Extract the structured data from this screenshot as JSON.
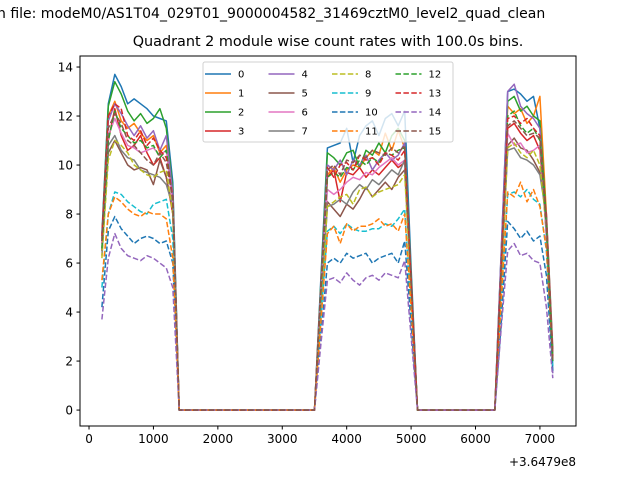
{
  "chart_data": {
    "type": "line",
    "suptitle": "n file: modeM0/AS1T04_029T01_9000004582_31469cztM0_level2_quad_clean",
    "title": "Quadrant 2 module wise count rates with 100.0s bins.",
    "xlabel": "",
    "ylabel": "",
    "x_offset_label": "+3.6479e8",
    "xlim": [
      -140,
      7560
    ],
    "ylim": [
      -0.65,
      14.45
    ],
    "xticks": [
      0,
      1000,
      2000,
      3000,
      4000,
      5000,
      6000,
      7000
    ],
    "yticks": [
      0,
      2,
      4,
      6,
      8,
      10,
      12,
      14
    ],
    "legend_position": "upper-center",
    "legend_columns": 4,
    "x": [
      200,
      300,
      400,
      500,
      600,
      700,
      800,
      900,
      1000,
      1100,
      1200,
      1300,
      1400,
      3500,
      3600,
      3700,
      3800,
      3900,
      4000,
      4100,
      4200,
      4300,
      4400,
      4500,
      4600,
      4700,
      4800,
      4900,
      5000,
      5100,
      6300,
      6400,
      6500,
      6600,
      6700,
      6800,
      6900,
      7000,
      7100,
      7200
    ],
    "series": [
      {
        "name": "0",
        "color": "#1f77b4",
        "dash": false,
        "values": [
          7.2,
          12.5,
          13.7,
          13.2,
          12.5,
          12.7,
          12.5,
          12.3,
          12.0,
          11.9,
          11.8,
          9.3,
          0,
          0,
          5.4,
          10.7,
          10.8,
          10.9,
          11.5,
          10.1,
          11.2,
          11.6,
          11.8,
          11.2,
          11.9,
          12.1,
          11.6,
          12.2,
          5.8,
          0,
          0,
          6.5,
          13.0,
          13.1,
          12.9,
          12.6,
          12.8,
          11.5,
          7.5,
          2.0
        ]
      },
      {
        "name": "1",
        "color": "#ff7f0e",
        "dash": false,
        "values": [
          6.5,
          12.0,
          12.6,
          11.8,
          11.5,
          11.7,
          11.3,
          11.0,
          11.2,
          10.5,
          10.8,
          8.5,
          0,
          0,
          5.0,
          9.6,
          9.9,
          9.3,
          9.8,
          10.0,
          9.9,
          10.3,
          10.6,
          10.4,
          11.3,
          10.6,
          11.4,
          10.7,
          5.2,
          0,
          0,
          6.2,
          12.4,
          12.1,
          12.3,
          11.7,
          12.0,
          12.8,
          8.0,
          2.2
        ]
      },
      {
        "name": "2",
        "color": "#2ca02c",
        "dash": false,
        "values": [
          7.0,
          12.4,
          13.4,
          12.9,
          12.2,
          11.8,
          12.1,
          11.7,
          11.9,
          12.3,
          11.5,
          9.0,
          0,
          0,
          5.2,
          10.5,
          10.3,
          10.0,
          10.5,
          10.6,
          9.9,
          10.6,
          10.4,
          10.9,
          10.5,
          11.2,
          11.5,
          11.0,
          5.5,
          0,
          0,
          6.4,
          12.6,
          12.8,
          12.2,
          12.4,
          12.0,
          11.8,
          7.8,
          2.0
        ]
      },
      {
        "name": "3",
        "color": "#d62728",
        "dash": false,
        "values": [
          6.8,
          11.0,
          12.3,
          11.2,
          10.6,
          10.8,
          11.2,
          10.5,
          10.0,
          10.3,
          9.5,
          8.0,
          0,
          0,
          4.8,
          9.5,
          9.8,
          8.5,
          9.7,
          9.6,
          9.9,
          9.5,
          9.8,
          9.6,
          9.9,
          10.2,
          9.9,
          10.1,
          5.0,
          0,
          0,
          6.0,
          11.5,
          11.7,
          11.3,
          11.0,
          11.2,
          10.6,
          7.2,
          2.0
        ]
      },
      {
        "name": "4",
        "color": "#9467bd",
        "dash": false,
        "values": [
          6.9,
          11.8,
          12.5,
          12.1,
          11.6,
          11.2,
          11.6,
          11.1,
          11.4,
          10.6,
          11.2,
          8.8,
          0,
          0,
          5.0,
          10.0,
          9.8,
          10.2,
          9.6,
          10.2,
          10.0,
          10.4,
          9.8,
          10.2,
          10.5,
          10.2,
          10.4,
          10.9,
          5.3,
          0,
          0,
          6.6,
          13.0,
          13.3,
          12.4,
          12.1,
          11.9,
          11.5,
          7.0,
          1.5
        ]
      },
      {
        "name": "5",
        "color": "#8c564b",
        "dash": false,
        "values": [
          6.5,
          10.5,
          11.0,
          10.5,
          10.0,
          9.8,
          9.9,
          9.8,
          9.2,
          10.2,
          9.5,
          8.2,
          0,
          0,
          4.4,
          8.5,
          8.2,
          7.9,
          8.4,
          8.2,
          8.6,
          9.1,
          8.7,
          9.0,
          9.3,
          9.0,
          9.5,
          9.8,
          5.0,
          0,
          0,
          5.4,
          10.8,
          11.1,
          10.7,
          10.6,
          10.2,
          9.7,
          8.0,
          2.5
        ]
      },
      {
        "name": "6",
        "color": "#e377c2",
        "dash": false,
        "values": [
          6.6,
          11.2,
          11.9,
          11.3,
          10.8,
          10.7,
          10.5,
          10.6,
          10.7,
          10.4,
          10.6,
          8.3,
          0,
          0,
          4.6,
          9.0,
          8.8,
          9.0,
          9.3,
          9.5,
          9.4,
          9.7,
          9.6,
          9.9,
          10.1,
          10.3,
          10.0,
          10.2,
          5.1,
          0,
          0,
          5.8,
          11.3,
          10.8,
          10.9,
          10.5,
          10.6,
          10.8,
          7.3,
          2.0
        ]
      },
      {
        "name": "7",
        "color": "#7f7f7f",
        "dash": false,
        "values": [
          6.3,
          10.8,
          11.2,
          10.6,
          10.3,
          10.2,
          9.8,
          9.7,
          9.6,
          9.5,
          9.2,
          8.3,
          0,
          0,
          4.3,
          8.3,
          8.4,
          8.6,
          8.4,
          8.9,
          9.2,
          9.0,
          9.4,
          9.2,
          9.5,
          9.8,
          9.6,
          10.2,
          5.0,
          0,
          0,
          5.4,
          10.6,
          10.7,
          10.3,
          10.2,
          10.0,
          9.6,
          7.9,
          2.3
        ]
      },
      {
        "name": "8",
        "color": "#bcbd22",
        "dash": true,
        "values": [
          6.2,
          10.2,
          11.0,
          10.8,
          10.5,
          10.0,
          9.8,
          9.6,
          9.5,
          9.7,
          9.8,
          8.0,
          0,
          0,
          4.2,
          8.3,
          8.5,
          8.7,
          8.8,
          8.4,
          9.0,
          9.1,
          8.7,
          8.9,
          9.0,
          9.1,
          9.2,
          9.6,
          4.9,
          0,
          0,
          5.4,
          10.7,
          10.9,
          10.5,
          10.3,
          10.6,
          10.0,
          7.5,
          2.0
        ]
      },
      {
        "name": "9",
        "color": "#17becf",
        "dash": true,
        "values": [
          5.0,
          8.0,
          8.9,
          8.8,
          8.5,
          8.3,
          8.1,
          8.0,
          8.4,
          8.5,
          8.6,
          7.0,
          0,
          0,
          3.8,
          7.3,
          7.5,
          7.2,
          7.6,
          7.4,
          7.3,
          7.3,
          7.4,
          7.4,
          7.6,
          7.5,
          7.8,
          8.2,
          4.0,
          0,
          0,
          4.4,
          8.8,
          8.9,
          8.7,
          9.0,
          8.6,
          8.4,
          6.5,
          1.8
        ]
      },
      {
        "name": "10",
        "color": "#1f77b4",
        "dash": true,
        "values": [
          4.2,
          7.3,
          7.9,
          7.4,
          7.1,
          6.8,
          7.0,
          7.1,
          7.0,
          6.8,
          6.9,
          6.0,
          0,
          0,
          3.0,
          6.0,
          6.2,
          6.0,
          6.4,
          6.2,
          6.3,
          6.4,
          6.0,
          6.2,
          6.3,
          6.4,
          6.0,
          6.9,
          3.5,
          0,
          0,
          3.6,
          7.7,
          7.4,
          7.0,
          7.3,
          6.9,
          7.1,
          5.5,
          1.6
        ]
      },
      {
        "name": "11",
        "color": "#ff7f0e",
        "dash": true,
        "values": [
          5.3,
          8.0,
          8.7,
          8.5,
          8.2,
          8.0,
          7.9,
          8.1,
          8.0,
          8.0,
          7.8,
          6.2,
          0,
          0,
          3.6,
          7.2,
          7.5,
          6.8,
          7.6,
          7.3,
          7.5,
          7.5,
          7.6,
          7.8,
          7.5,
          7.6,
          7.3,
          8.0,
          4.2,
          0,
          0,
          4.5,
          8.9,
          8.7,
          9.3,
          8.5,
          9.0,
          8.3,
          6.6,
          2.0
        ]
      },
      {
        "name": "12",
        "color": "#2ca02c",
        "dash": true,
        "values": [
          6.6,
          11.0,
          12.2,
          11.5,
          11.2,
          10.9,
          11.0,
          10.7,
          10.8,
          10.3,
          10.6,
          8.5,
          0,
          0,
          4.8,
          9.5,
          9.7,
          9.5,
          9.9,
          9.8,
          10.2,
          10.0,
          10.3,
          10.1,
          10.5,
          10.4,
          10.6,
          10.7,
          5.3,
          0,
          0,
          6.0,
          12.0,
          12.2,
          11.6,
          11.3,
          11.5,
          11.0,
          7.5,
          2.0
        ]
      },
      {
        "name": "13",
        "color": "#d62728",
        "dash": true,
        "values": [
          7.1,
          12.0,
          12.5,
          12.3,
          11.2,
          11.0,
          11.4,
          10.8,
          11.1,
          10.6,
          10.3,
          8.7,
          0,
          0,
          5.0,
          9.9,
          9.5,
          10.0,
          10.1,
          9.8,
          10.4,
          10.2,
          10.3,
          10.0,
          10.5,
          10.4,
          10.2,
          10.6,
          5.3,
          0,
          0,
          6.0,
          11.9,
          12.0,
          11.7,
          11.9,
          11.5,
          11.2,
          7.8,
          2.2
        ]
      },
      {
        "name": "14",
        "color": "#9467bd",
        "dash": true,
        "values": [
          3.7,
          6.2,
          7.2,
          6.6,
          6.3,
          6.2,
          6.1,
          6.3,
          6.2,
          6.0,
          5.8,
          5.0,
          0,
          0,
          2.7,
          5.3,
          5.4,
          5.2,
          5.6,
          5.3,
          5.1,
          5.4,
          5.5,
          5.3,
          5.6,
          5.5,
          5.4,
          6.1,
          3.0,
          0,
          0,
          3.4,
          6.5,
          6.8,
          6.3,
          6.4,
          6.1,
          6.0,
          4.2,
          1.3
        ]
      },
      {
        "name": "15",
        "color": "#8c564b",
        "dash": true,
        "values": [
          6.9,
          11.5,
          12.1,
          11.7,
          11.0,
          10.8,
          10.5,
          10.2,
          10.0,
          10.5,
          10.1,
          8.6,
          0,
          0,
          5.0,
          9.8,
          10.0,
          9.6,
          10.2,
          10.1,
          10.4,
          10.3,
          10.6,
          10.5,
          10.4,
          10.7,
          10.5,
          10.8,
          5.4,
          0,
          0,
          5.8,
          11.6,
          11.8,
          11.5,
          11.2,
          11.3,
          11.1,
          7.6,
          2.0
        ]
      }
    ]
  }
}
